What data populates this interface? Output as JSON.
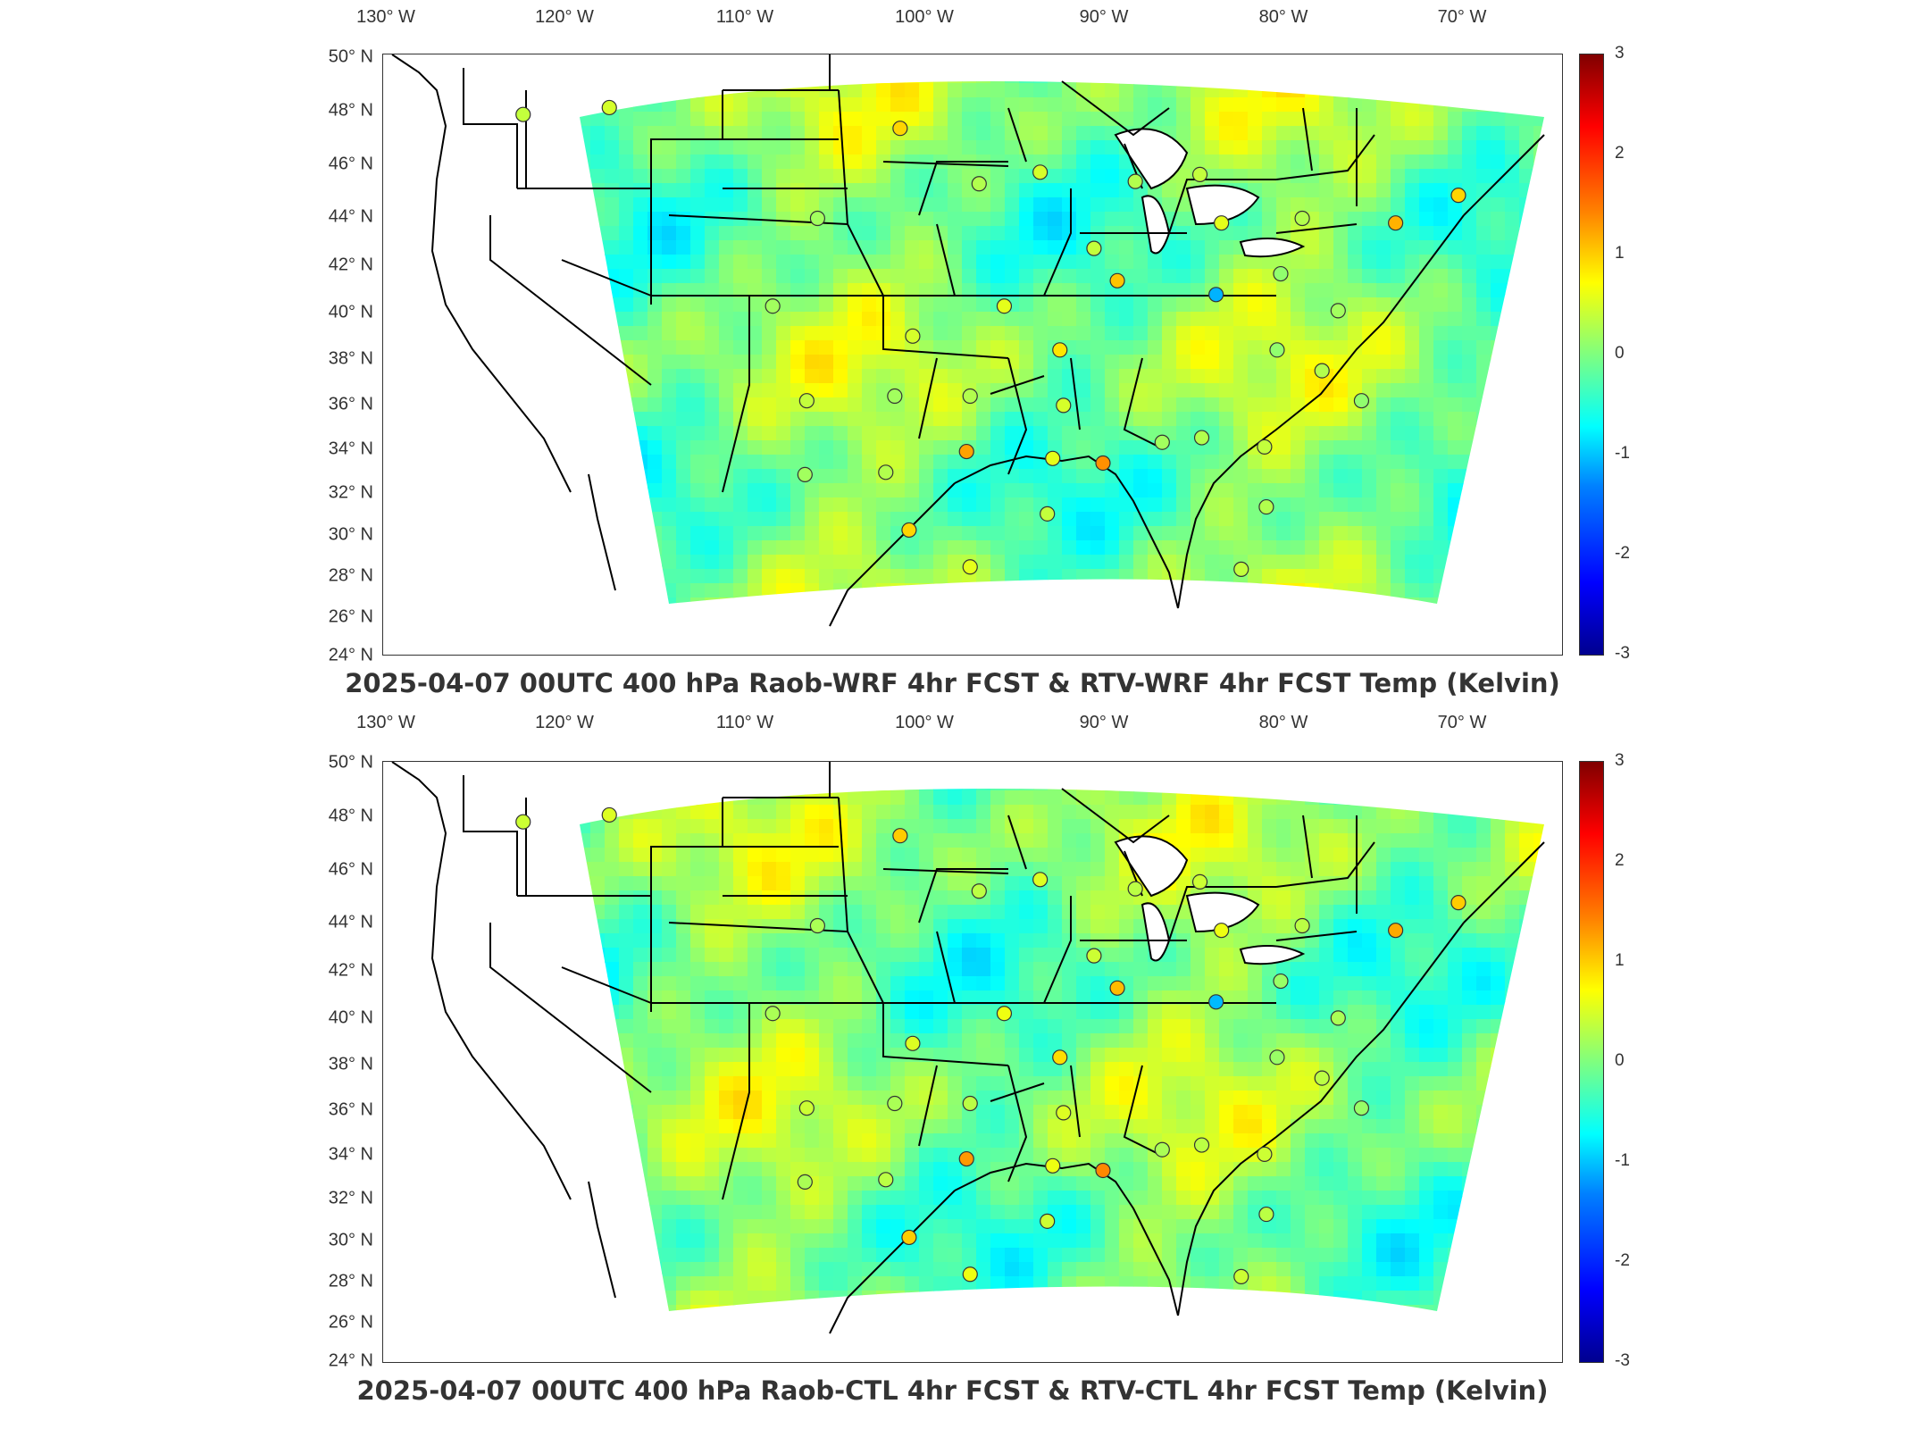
{
  "figure": {
    "panels": [
      {
        "title": "2025-04-07 00UTC 400 hPa Raob-WRF 4hr FCST & RTV-WRF 4hr FCST Temp (Kelvin)",
        "lon_labels": [
          "130° W",
          "120° W",
          "110° W",
          "100° W",
          "90° W",
          "80° W",
          "70° W"
        ],
        "lat_labels": [
          "50° N",
          "48° N",
          "46° N",
          "44° N",
          "42° N",
          "40° N",
          "38° N",
          "36° N",
          "34° N",
          "32° N",
          "30° N",
          "28° N",
          "26° N",
          "24° N"
        ],
        "colorbar_ticks": [
          "3",
          "2",
          "1",
          "0",
          "-1",
          "-2",
          "-3"
        ]
      },
      {
        "title": "2025-04-07 00UTC 400 hPa Raob-CTL 4hr FCST & RTV-CTL 4hr FCST Temp (Kelvin)",
        "lon_labels": [
          "130° W",
          "120° W",
          "110° W",
          "100° W",
          "90° W",
          "80° W",
          "70° W"
        ],
        "lat_labels": [
          "50° N",
          "48° N",
          "46° N",
          "44° N",
          "42° N",
          "40° N",
          "38° N",
          "36° N",
          "34° N",
          "32° N",
          "30° N",
          "28° N",
          "26° N",
          "24° N"
        ],
        "colorbar_ticks": [
          "3",
          "2",
          "1",
          "0",
          "-1",
          "-2",
          "-3"
        ]
      }
    ],
    "colormap": {
      "name": "jet",
      "min": -3,
      "max": 3,
      "unit": "Kelvin"
    },
    "stations": [
      {
        "lon": -122.4,
        "lat": 47.4,
        "value": 0.4
      },
      {
        "lon": -117.6,
        "lat": 47.7,
        "value": 0.5
      },
      {
        "lon": -101.4,
        "lat": 46.8,
        "value": 1.0
      },
      {
        "lon": -97.0,
        "lat": 44.4,
        "value": 0.3
      },
      {
        "lon": -106.0,
        "lat": 42.9,
        "value": 0.2
      },
      {
        "lon": -93.6,
        "lat": 44.9,
        "value": 0.5
      },
      {
        "lon": -88.3,
        "lat": 44.5,
        "value": 0.3
      },
      {
        "lon": -84.7,
        "lat": 44.8,
        "value": 0.4
      },
      {
        "lon": -83.5,
        "lat": 42.7,
        "value": 0.6
      },
      {
        "lon": -79.0,
        "lat": 42.9,
        "value": 0.3
      },
      {
        "lon": -73.8,
        "lat": 42.7,
        "value": 1.2
      },
      {
        "lon": -70.3,
        "lat": 43.9,
        "value": 1.0
      },
      {
        "lon": -89.3,
        "lat": 40.2,
        "value": 1.1
      },
      {
        "lon": -90.6,
        "lat": 41.6,
        "value": 0.4
      },
      {
        "lon": -83.8,
        "lat": 39.6,
        "value": -1.2
      },
      {
        "lon": -80.2,
        "lat": 40.5,
        "value": 0.1
      },
      {
        "lon": -77.0,
        "lat": 38.9,
        "value": 0.2
      },
      {
        "lon": -80.4,
        "lat": 37.2,
        "value": 0.1
      },
      {
        "lon": -77.9,
        "lat": 36.3,
        "value": 0.3
      },
      {
        "lon": -75.7,
        "lat": 35.0,
        "value": 0.1
      },
      {
        "lon": -108.5,
        "lat": 39.1,
        "value": 0.2
      },
      {
        "lon": -100.7,
        "lat": 37.8,
        "value": 0.5
      },
      {
        "lon": -95.6,
        "lat": 39.1,
        "value": 0.6
      },
      {
        "lon": -92.5,
        "lat": 37.2,
        "value": 0.9
      },
      {
        "lon": -106.6,
        "lat": 35.0,
        "value": 0.4
      },
      {
        "lon": -101.7,
        "lat": 35.2,
        "value": 0.2
      },
      {
        "lon": -97.5,
        "lat": 35.2,
        "value": 0.3
      },
      {
        "lon": -92.3,
        "lat": 34.8,
        "value": 0.5
      },
      {
        "lon": -86.8,
        "lat": 33.2,
        "value": 0.2
      },
      {
        "lon": -84.6,
        "lat": 33.4,
        "value": 0.3
      },
      {
        "lon": -81.1,
        "lat": 33.0,
        "value": 0.4
      },
      {
        "lon": -106.7,
        "lat": 31.8,
        "value": 0.2
      },
      {
        "lon": -102.2,
        "lat": 31.9,
        "value": 0.3
      },
      {
        "lon": -97.7,
        "lat": 32.8,
        "value": 1.3
      },
      {
        "lon": -92.9,
        "lat": 32.5,
        "value": 0.6
      },
      {
        "lon": -90.1,
        "lat": 32.3,
        "value": 1.4
      },
      {
        "lon": -93.2,
        "lat": 30.1,
        "value": 0.4
      },
      {
        "lon": -100.9,
        "lat": 29.4,
        "value": 1.0
      },
      {
        "lon": -97.5,
        "lat": 27.8,
        "value": 0.6
      },
      {
        "lon": -82.4,
        "lat": 27.7,
        "value": 0.4
      },
      {
        "lon": -81.0,
        "lat": 30.4,
        "value": 0.3
      }
    ]
  }
}
